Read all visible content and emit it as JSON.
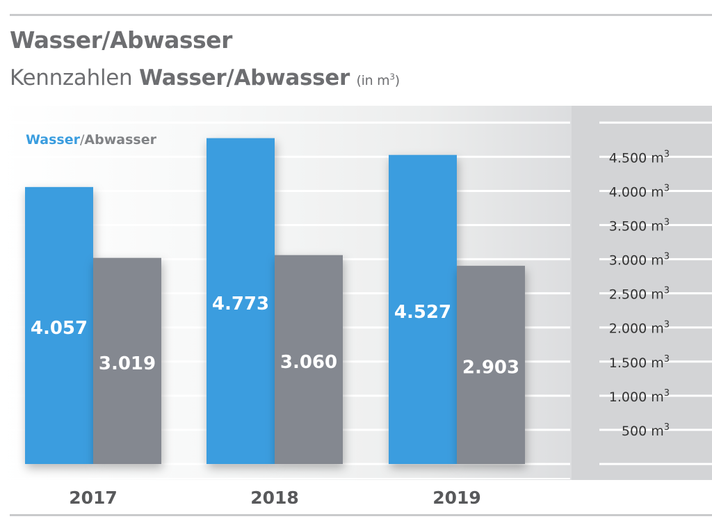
{
  "page": {
    "title": "Wasser/Abwasser",
    "subtitle_prefix": "Kennzahlen ",
    "subtitle_bold": "Wasser/Abwasser",
    "subtitle_unit_prefix": "(in m",
    "subtitle_unit_sup": "3",
    "subtitle_unit_suffix": ")"
  },
  "legend": {
    "water": "Wasser",
    "separator": "/",
    "wastewater": "Abwasser"
  },
  "colors": {
    "water": "#3a9ddf",
    "wastewater": "#848890",
    "axis_text": "#333333",
    "year_text": "#58595b"
  },
  "chart_data": {
    "type": "bar",
    "categories": [
      "2017",
      "2018",
      "2019"
    ],
    "series": [
      {
        "name": "Wasser",
        "values": [
          4057,
          4773,
          4527
        ],
        "labels": [
          "4.057",
          "4.773",
          "4.527"
        ]
      },
      {
        "name": "Abwasser",
        "values": [
          3019,
          3060,
          2903
        ],
        "labels": [
          "3.019",
          "3.060",
          "2.903"
        ]
      }
    ],
    "ylim": [
      0,
      5000
    ],
    "yticks": [
      500,
      1000,
      1500,
      2000,
      2500,
      3000,
      3500,
      4000,
      4500
    ],
    "ytick_labels": [
      "500 m",
      "1.000 m",
      "1.500 m",
      "2.000 m",
      "2.500 m",
      "3.000 m",
      "3.500 m",
      "4.000 m",
      "4.500 m"
    ],
    "ytick_unit_sup": "3",
    "grid": true,
    "legend_position": "top-left"
  }
}
